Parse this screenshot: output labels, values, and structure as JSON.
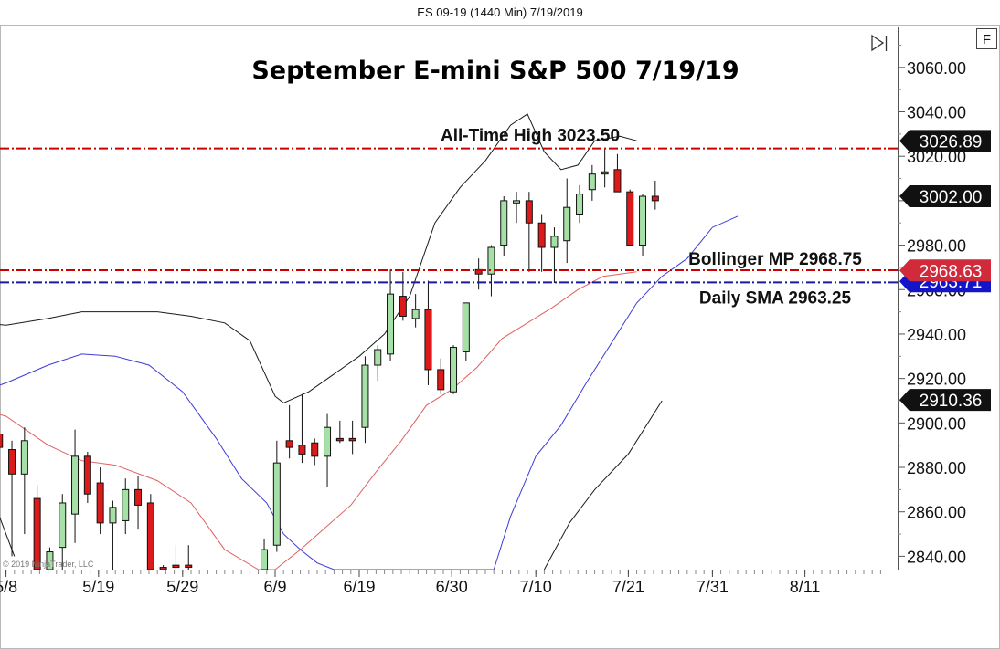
{
  "window": {
    "title": "ES 09-19 (1440 Min)  7/19/2019",
    "f_button": "F",
    "copyright": "© 2019 NinjaTrader, LLC"
  },
  "colors": {
    "up_candle": "#a6e0a6",
    "down_candle": "#dd1a1a",
    "bb_outer": "#1a1a1a",
    "bb_mid": "#e06060",
    "sma": "#3c3cd8",
    "ath_line": "#cc0000",
    "bollinger_line": "#cc0000",
    "sma_line": "#1a1aa0",
    "badge_dark": "#111111",
    "badge_red": "#d12a3a",
    "badge_blue": "#1414c8"
  },
  "chart_data": {
    "type": "candlestick",
    "title": "September E-mini S&P 500 7/19/19",
    "ylim": [
      2834,
      3078
    ],
    "y_ticks": [
      "2840.00",
      "2860.00",
      "2880.00",
      "2900.00",
      "2920.00",
      "2940.00",
      "2960.00",
      "2980.00",
      "3000.00",
      "3020.00",
      "3040.00",
      "3060.00"
    ],
    "x_ticks": [
      {
        "label": "5/8",
        "day": 8
      },
      {
        "label": "5/19",
        "day": 19
      },
      {
        "label": "5/29",
        "day": 29
      },
      {
        "label": "6/9",
        "day": 40
      },
      {
        "label": "6/19",
        "day": 50
      },
      {
        "label": "6/30",
        "day": 61
      },
      {
        "label": "7/10",
        "day": 71
      },
      {
        "label": "7/21",
        "day": 82
      },
      {
        "label": "7/31",
        "day": 92
      },
      {
        "label": "8/11",
        "day": 103
      }
    ],
    "candles": [
      {
        "day": 7.2,
        "o": 2895,
        "h": 2900,
        "l": 2880,
        "c": 2889
      },
      {
        "day": 8.7,
        "o": 2888,
        "h": 2892,
        "l": 2840,
        "c": 2877
      },
      {
        "day": 10.2,
        "o": 2877,
        "h": 2898,
        "l": 2850,
        "c": 2892
      },
      {
        "day": 11.7,
        "o": 2866,
        "h": 2872,
        "l": 2834,
        "c": 2834
      },
      {
        "day": 13.2,
        "o": 2834,
        "h": 2844,
        "l": 2834,
        "c": 2842
      },
      {
        "day": 14.7,
        "o": 2844,
        "h": 2868,
        "l": 2834,
        "c": 2864
      },
      {
        "day": 16.2,
        "o": 2859,
        "h": 2897,
        "l": 2846,
        "c": 2885
      },
      {
        "day": 17.7,
        "o": 2885,
        "h": 2887,
        "l": 2864,
        "c": 2868
      },
      {
        "day": 19.2,
        "o": 2873,
        "h": 2880,
        "l": 2850,
        "c": 2855
      },
      {
        "day": 20.7,
        "o": 2855,
        "h": 2865,
        "l": 2834,
        "c": 2862
      },
      {
        "day": 22.2,
        "o": 2856,
        "h": 2875,
        "l": 2850,
        "c": 2870
      },
      {
        "day": 23.7,
        "o": 2870,
        "h": 2876,
        "l": 2852,
        "c": 2863
      },
      {
        "day": 25.2,
        "o": 2864,
        "h": 2868,
        "l": 2834,
        "c": 2834
      },
      {
        "day": 26.7,
        "o": 2835,
        "h": 2836,
        "l": 2834,
        "c": 2834
      },
      {
        "day": 28.2,
        "o": 2836,
        "h": 2845,
        "l": 2834,
        "c": 2835
      },
      {
        "day": 29.7,
        "o": 2836,
        "h": 2845,
        "l": 2834,
        "c": 2835
      },
      {
        "day": 38.7,
        "o": 2834,
        "h": 2848,
        "l": 2834,
        "c": 2843
      },
      {
        "day": 40.2,
        "o": 2845,
        "h": 2892,
        "l": 2842,
        "c": 2882
      },
      {
        "day": 41.7,
        "o": 2892,
        "h": 2908,
        "l": 2884,
        "c": 2889
      },
      {
        "day": 43.2,
        "o": 2890,
        "h": 2913,
        "l": 2882,
        "c": 2886
      },
      {
        "day": 44.7,
        "o": 2891,
        "h": 2893,
        "l": 2881,
        "c": 2885
      },
      {
        "day": 46.2,
        "o": 2885,
        "h": 2904,
        "l": 2871,
        "c": 2898
      },
      {
        "day": 47.7,
        "o": 2893,
        "h": 2901,
        "l": 2891,
        "c": 2892
      },
      {
        "day": 49.2,
        "o": 2893,
        "h": 2901,
        "l": 2886,
        "c": 2892
      },
      {
        "day": 50.7,
        "o": 2898,
        "h": 2930,
        "l": 2891,
        "c": 2926
      },
      {
        "day": 52.2,
        "o": 2926,
        "h": 2935,
        "l": 2919,
        "c": 2933
      },
      {
        "day": 53.7,
        "o": 2931,
        "h": 2969,
        "l": 2928,
        "c": 2958
      },
      {
        "day": 55.2,
        "o": 2957,
        "h": 2968,
        "l": 2946,
        "c": 2948
      },
      {
        "day": 56.7,
        "o": 2947,
        "h": 2958,
        "l": 2943,
        "c": 2951
      },
      {
        "day": 58.2,
        "o": 2951,
        "h": 2964,
        "l": 2917,
        "c": 2924
      },
      {
        "day": 59.7,
        "o": 2924,
        "h": 2929,
        "l": 2913,
        "c": 2915
      },
      {
        "day": 61.2,
        "o": 2914,
        "h": 2935,
        "l": 2913,
        "c": 2934
      },
      {
        "day": 62.7,
        "o": 2932,
        "h": 2954,
        "l": 2928,
        "c": 2954
      },
      {
        "day": 64.2,
        "o": 2969,
        "h": 2974,
        "l": 2960,
        "c": 2967
      },
      {
        "day": 65.7,
        "o": 2967,
        "h": 2980,
        "l": 2957,
        "c": 2979
      },
      {
        "day": 67.2,
        "o": 2980,
        "h": 3002,
        "l": 2975,
        "c": 3000
      },
      {
        "day": 68.7,
        "o": 2999,
        "h": 3004,
        "l": 2990,
        "c": 3000
      },
      {
        "day": 70.2,
        "o": 3000,
        "h": 3004,
        "l": 2968,
        "c": 2990
      },
      {
        "day": 71.7,
        "o": 2990,
        "h": 2994,
        "l": 2968,
        "c": 2979
      },
      {
        "day": 73.2,
        "o": 2979,
        "h": 2988,
        "l": 2963,
        "c": 2984
      },
      {
        "day": 74.7,
        "o": 2982,
        "h": 3010,
        "l": 2972,
        "c": 2997
      },
      {
        "day": 76.2,
        "o": 2994,
        "h": 3007,
        "l": 2990,
        "c": 3003
      },
      {
        "day": 77.7,
        "o": 3005,
        "h": 3016,
        "l": 3000,
        "c": 3012
      },
      {
        "day": 79.2,
        "o": 3012,
        "h": 3023.5,
        "l": 3006,
        "c": 3013
      },
      {
        "day": 80.7,
        "o": 3014,
        "h": 3021,
        "l": 3004,
        "c": 3004
      },
      {
        "day": 82.2,
        "o": 3004,
        "h": 3005,
        "l": 2980,
        "c": 2980
      },
      {
        "day": 83.7,
        "o": 2980,
        "h": 3003,
        "l": 2975,
        "c": 3002
      },
      {
        "day": 85.2,
        "o": 3002,
        "h": 3009,
        "l": 2996,
        "c": 3000
      }
    ],
    "bollinger_upper": [
      [
        5,
        2945
      ],
      [
        8,
        2944
      ],
      [
        13,
        2947
      ],
      [
        17,
        2950
      ],
      [
        21,
        2950
      ],
      [
        26,
        2950
      ],
      [
        30,
        2948
      ],
      [
        34,
        2945
      ],
      [
        37,
        2937
      ],
      [
        40,
        2912
      ],
      [
        41,
        2909
      ],
      [
        44,
        2914
      ],
      [
        47,
        2922
      ],
      [
        50,
        2930
      ],
      [
        53,
        2940
      ],
      [
        56,
        2957
      ],
      [
        59,
        2990
      ],
      [
        62,
        3006
      ],
      [
        65,
        3018
      ],
      [
        68,
        3034
      ],
      [
        70,
        3039
      ],
      [
        72,
        3022
      ],
      [
        74,
        3014
      ],
      [
        76,
        3016
      ],
      [
        78,
        3027
      ],
      [
        81,
        3029
      ],
      [
        83,
        3027
      ]
    ],
    "bollinger_mid": [
      [
        5,
        2906
      ],
      [
        8,
        2903
      ],
      [
        13,
        2890
      ],
      [
        17,
        2883
      ],
      [
        21,
        2881
      ],
      [
        26,
        2874
      ],
      [
        30,
        2864
      ],
      [
        34,
        2843
      ],
      [
        38,
        2834
      ],
      [
        40,
        2834
      ],
      [
        43,
        2843
      ],
      [
        46,
        2853
      ],
      [
        49,
        2863
      ],
      [
        52,
        2878
      ],
      [
        55,
        2892
      ],
      [
        58,
        2908
      ],
      [
        61,
        2915
      ],
      [
        64,
        2925
      ],
      [
        67,
        2938
      ],
      [
        70,
        2945
      ],
      [
        73,
        2952
      ],
      [
        76,
        2960
      ],
      [
        79,
        2966
      ],
      [
        83,
        2968
      ]
    ],
    "bollinger_lower": [
      [
        5,
        2869
      ],
      [
        7,
        2860
      ],
      [
        9,
        2840
      ]
    ],
    "sma": [
      [
        5,
        2914
      ],
      [
        8,
        2918
      ],
      [
        13,
        2926
      ],
      [
        17,
        2931
      ],
      [
        21,
        2930
      ],
      [
        25,
        2926
      ],
      [
        29,
        2914
      ],
      [
        33,
        2893
      ],
      [
        36,
        2875
      ],
      [
        39,
        2864
      ],
      [
        41,
        2850
      ],
      [
        43,
        2843
      ],
      [
        45,
        2837
      ],
      [
        47,
        2834
      ],
      [
        66,
        2834
      ],
      [
        68,
        2858
      ],
      [
        71,
        2885
      ],
      [
        74,
        2899
      ],
      [
        77,
        2918
      ],
      [
        80,
        2936
      ],
      [
        83,
        2954
      ],
      [
        86,
        2966
      ],
      [
        89,
        2974
      ],
      [
        92,
        2988
      ],
      [
        95,
        2993
      ]
    ],
    "sma_tail": [
      [
        72,
        2834
      ],
      [
        75,
        2855
      ],
      [
        78,
        2870
      ],
      [
        82,
        2886
      ],
      [
        86,
        2910
      ]
    ],
    "levels": [
      {
        "name": "ath",
        "value": 3023.5,
        "label": "All-Time High 3023.50",
        "badge": "3026.89",
        "badge_value": 3026.89
      },
      {
        "name": "bollinger",
        "value": 2968.75,
        "label": "Bollinger MP 2968.75",
        "badge": "2968.63",
        "badge_value": 2968.63
      },
      {
        "name": "sma",
        "value": 2963.25,
        "label": "Daily SMA 2963.25",
        "badge": "2963.71",
        "badge_value": 2963.71
      }
    ],
    "extra_badges": [
      {
        "name": "last-price",
        "text": "3002.00",
        "value": 3002.0
      },
      {
        "name": "lower-band",
        "text": "2910.36",
        "value": 2910.36
      }
    ]
  }
}
